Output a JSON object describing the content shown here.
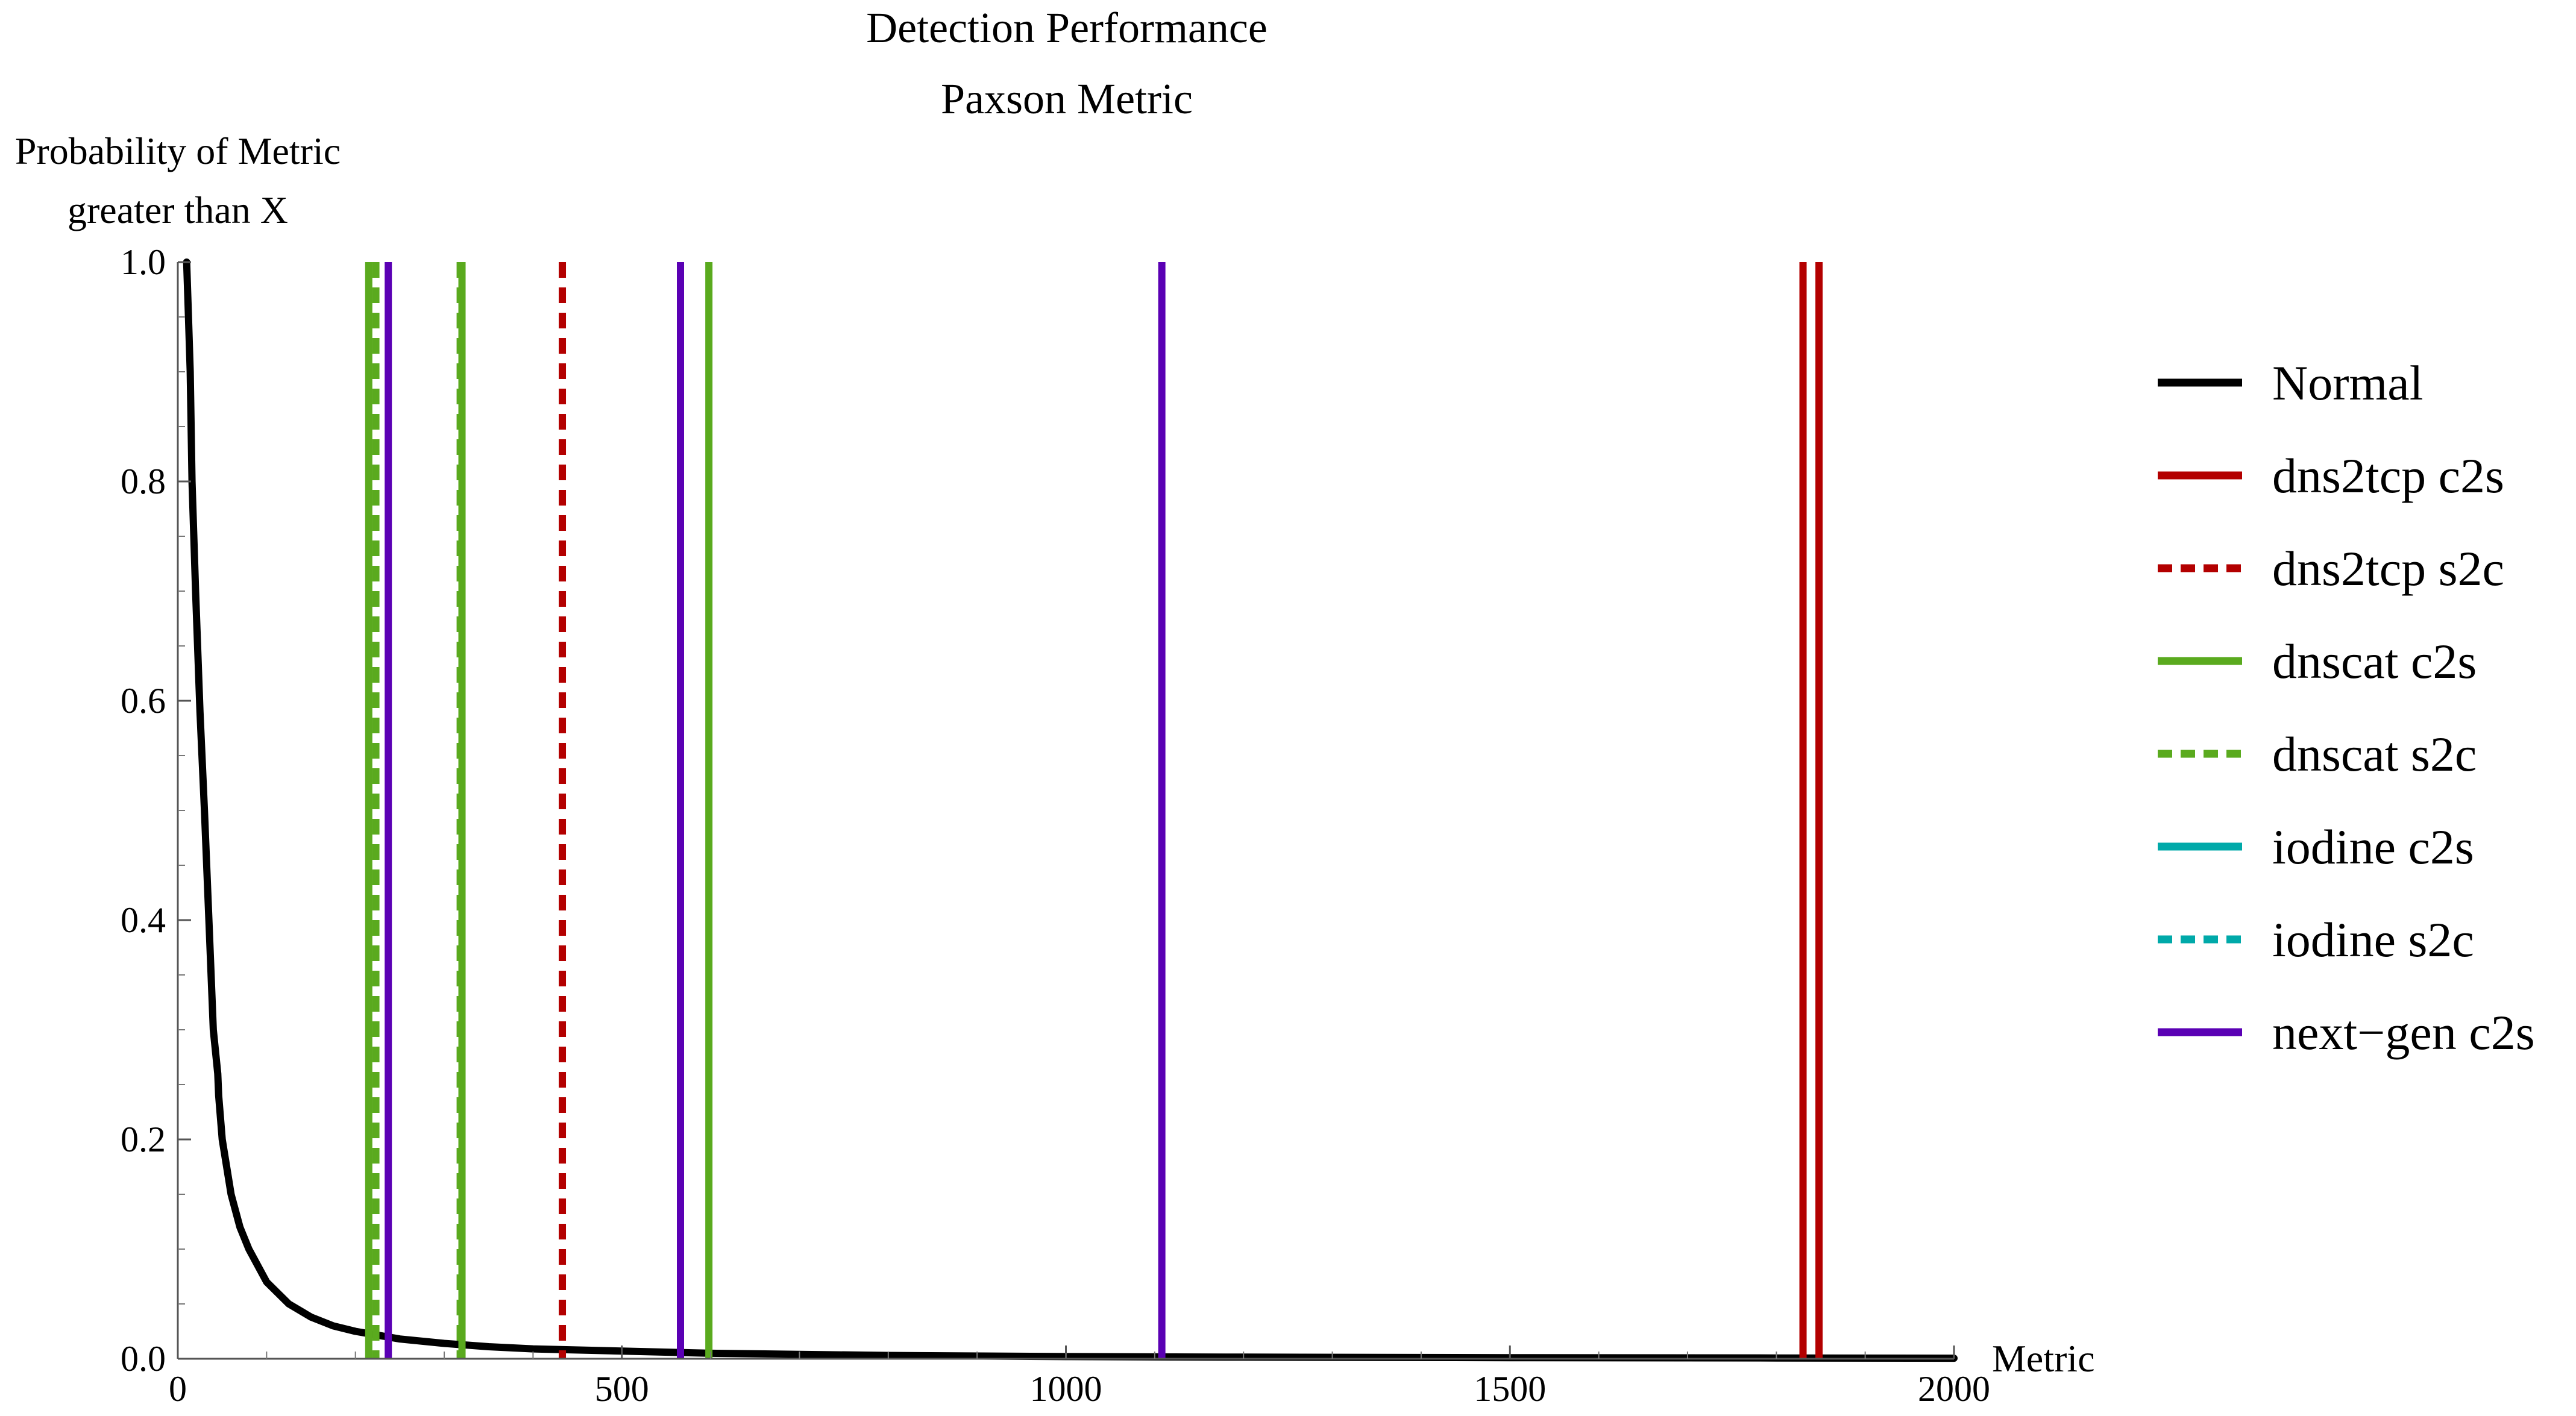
{
  "chart_data": {
    "type": "line",
    "title": "Detection Performance",
    "subtitle": "Paxson Metric",
    "ylabel_lines": [
      "Probability of Metric",
      "greater than X"
    ],
    "xlabel": "Metric",
    "xlim": [
      0,
      2000
    ],
    "ylim": [
      0,
      1
    ],
    "x_ticks": [
      0,
      500,
      1000,
      1500,
      2000
    ],
    "x_tick_labels": [
      "0",
      "500",
      "1000",
      "1500",
      "2000"
    ],
    "y_ticks": [
      0,
      0.2,
      0.4,
      0.6,
      0.8,
      1.0
    ],
    "y_tick_labels": [
      "0.0",
      "0.2",
      "0.4",
      "0.6",
      "0.8",
      "1.0"
    ],
    "grid": false,
    "legend_position": "right",
    "series": [
      {
        "name": "Normal",
        "kind": "curve",
        "color": "#000000",
        "dash": "solid",
        "x": [
          10,
          12,
          14,
          16,
          20,
          25,
          30,
          35,
          40,
          45,
          46,
          50,
          60,
          70,
          80,
          100,
          125,
          150,
          175,
          200,
          250,
          300,
          350,
          400,
          500,
          600,
          700,
          800,
          1000,
          1200,
          1500,
          1800,
          2000
        ],
        "y": [
          1.0,
          0.95,
          0.9,
          0.8,
          0.7,
          0.59,
          0.5,
          0.4,
          0.3,
          0.26,
          0.24,
          0.2,
          0.15,
          0.12,
          0.1,
          0.07,
          0.05,
          0.038,
          0.03,
          0.025,
          0.018,
          0.014,
          0.011,
          0.009,
          0.007,
          0.005,
          0.004,
          0.003,
          0.002,
          0.0015,
          0.001,
          0.0007,
          0.0005
        ]
      },
      {
        "name": "dns2tcp c2s",
        "kind": "vlines",
        "color": "#b30000",
        "dash": "solid",
        "x": [
          1830,
          1848
        ]
      },
      {
        "name": "dns2tcp s2c",
        "kind": "vlines",
        "color": "#b30000",
        "dash": "dashed",
        "x": [
          433
        ]
      },
      {
        "name": "dnscat c2s",
        "kind": "vlines",
        "color": "#5aaa1e",
        "dash": "solid",
        "x": [
          215,
          320,
          598
        ]
      },
      {
        "name": "dnscat s2c",
        "kind": "vlines",
        "color": "#5aaa1e",
        "dash": "dashed",
        "x": [
          223,
          318
        ]
      },
      {
        "name": "iodine c2s",
        "kind": "vlines",
        "color": "#00a9a9",
        "dash": "solid",
        "x": []
      },
      {
        "name": "iodine s2c",
        "kind": "vlines",
        "color": "#00a9a9",
        "dash": "dashed",
        "x": []
      },
      {
        "name": "next−gen c2s",
        "kind": "vlines",
        "color": "#5a00b4",
        "dash": "solid",
        "x": [
          237,
          566,
          1108
        ]
      }
    ]
  }
}
